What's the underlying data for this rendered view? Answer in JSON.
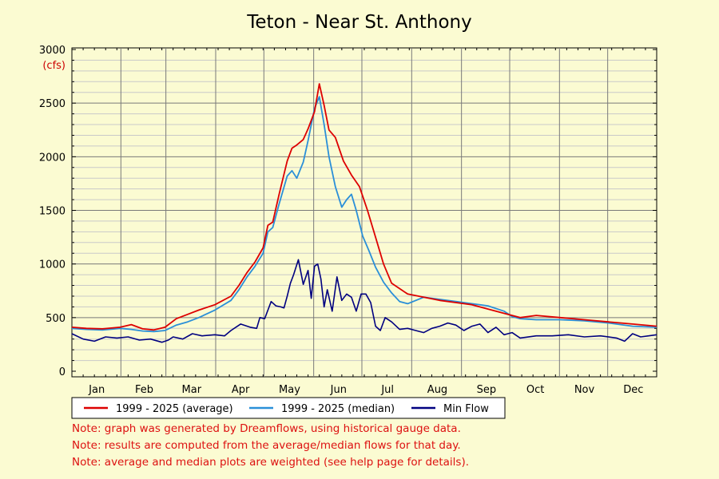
{
  "chart_data": {
    "type": "line",
    "title": "Teton - Near St. Anthony",
    "ylabel": "(cfs)",
    "xlabel": "",
    "ylim": [
      0,
      3000
    ],
    "yticks": [
      0,
      500,
      1000,
      1500,
      2000,
      2500,
      3000
    ],
    "x_unit": "day of year",
    "xlim": [
      1,
      365
    ],
    "months": [
      "Jan",
      "Feb",
      "Mar",
      "Apr",
      "May",
      "Jun",
      "Jul",
      "Aug",
      "Sep",
      "Oct",
      "Nov",
      "Dec"
    ],
    "grid": true,
    "legend_position": "bottom-left",
    "series": [
      {
        "name": "1999 - 2025 (average)",
        "color": "#dd0000",
        "x": [
          1,
          10,
          20,
          31,
          38,
          45,
          52,
          59,
          66,
          73,
          80,
          90,
          100,
          105,
          110,
          115,
          120,
          123,
          126,
          130,
          135,
          138,
          141,
          145,
          148,
          152,
          155,
          158,
          161,
          165,
          170,
          175,
          180,
          185,
          190,
          195,
          200,
          210,
          220,
          230,
          240,
          250,
          260,
          270,
          275,
          280,
          290,
          305,
          320,
          335,
          350,
          365
        ],
        "y": [
          410,
          400,
          395,
          410,
          435,
          395,
          385,
          410,
          490,
          530,
          570,
          620,
          700,
          800,
          920,
          1020,
          1150,
          1360,
          1390,
          1650,
          1960,
          2080,
          2110,
          2160,
          2260,
          2420,
          2680,
          2480,
          2250,
          2180,
          1960,
          1830,
          1720,
          1500,
          1250,
          1000,
          820,
          720,
          690,
          660,
          640,
          620,
          580,
          540,
          520,
          500,
          520,
          500,
          480,
          460,
          440,
          420
        ]
      },
      {
        "name": "1999 - 2025 (median)",
        "color": "#2a8fd8",
        "x": [
          1,
          10,
          20,
          31,
          38,
          45,
          52,
          59,
          66,
          73,
          80,
          90,
          100,
          105,
          110,
          115,
          120,
          123,
          126,
          130,
          135,
          138,
          141,
          145,
          148,
          152,
          155,
          158,
          161,
          165,
          169,
          172,
          175,
          178,
          182,
          186,
          190,
          195,
          200,
          205,
          210,
          220,
          230,
          240,
          250,
          260,
          270,
          275,
          280,
          290,
          305,
          320,
          335,
          350,
          365
        ],
        "y": [
          400,
          390,
          385,
          400,
          390,
          375,
          370,
          380,
          430,
          460,
          500,
          570,
          660,
          760,
          880,
          980,
          1100,
          1300,
          1340,
          1560,
          1820,
          1870,
          1800,
          1950,
          2150,
          2450,
          2560,
          2300,
          2000,
          1720,
          1530,
          1600,
          1650,
          1500,
          1260,
          1120,
          970,
          830,
          730,
          650,
          630,
          690,
          670,
          650,
          630,
          610,
          560,
          510,
          490,
          480,
          480,
          470,
          450,
          420,
          410
        ]
      },
      {
        "name": "Min Flow",
        "color": "#000080",
        "x": [
          1,
          8,
          15,
          22,
          29,
          36,
          43,
          50,
          57,
          61,
          64,
          70,
          76,
          82,
          90,
          96,
          100,
          106,
          112,
          116,
          118,
          121,
          125,
          128,
          131,
          133,
          135,
          137,
          139,
          142,
          145,
          148,
          150,
          152,
          154,
          156,
          158,
          160,
          163,
          166,
          169,
          172,
          175,
          178,
          181,
          184,
          187,
          190,
          193,
          196,
          200,
          205,
          210,
          215,
          220,
          225,
          230,
          235,
          240,
          245,
          250,
          255,
          260,
          265,
          270,
          275,
          280,
          290,
          300,
          310,
          320,
          330,
          340,
          345,
          350,
          355,
          360,
          365
        ],
        "y": [
          350,
          300,
          280,
          320,
          310,
          320,
          290,
          300,
          270,
          290,
          320,
          300,
          350,
          330,
          340,
          330,
          380,
          440,
          410,
          400,
          500,
          490,
          650,
          610,
          600,
          590,
          700,
          820,
          900,
          1040,
          810,
          940,
          680,
          980,
          1000,
          860,
          600,
          760,
          560,
          880,
          660,
          720,
          690,
          560,
          720,
          720,
          640,
          420,
          380,
          500,
          460,
          390,
          400,
          380,
          360,
          400,
          420,
          450,
          430,
          380,
          420,
          440,
          360,
          410,
          340,
          360,
          310,
          330,
          330,
          340,
          320,
          330,
          310,
          280,
          350,
          320,
          330,
          340
        ]
      }
    ],
    "notes": [
      "Note: graph was generated by Dreamflows, using historical gauge data.",
      "Note: results are computed from the average/median flows for that day.",
      "Note: average and median plots are weighted (see help page for details)."
    ]
  }
}
